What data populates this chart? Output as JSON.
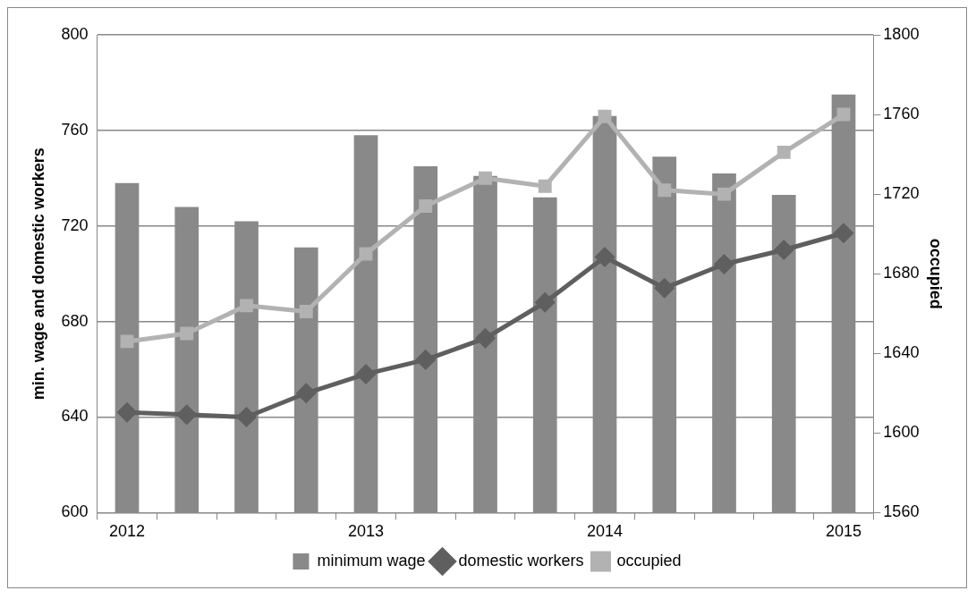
{
  "chart_data": {
    "type": "bar",
    "ylabel": "min. wage and domestic workers",
    "y2label": "occupied",
    "categories": [
      "2012",
      null,
      null,
      null,
      "2013",
      null,
      null,
      null,
      "2014",
      null,
      null,
      null,
      "2015"
    ],
    "series": [
      {
        "name": "minimum wage",
        "color": "#898989",
        "values": [
          738,
          728,
          722,
          711,
          758,
          745,
          741,
          732,
          766,
          749,
          742,
          733,
          775
        ]
      },
      {
        "name": "domestic workers",
        "type": "line",
        "color": "#5f5f5f",
        "marker": "diamond",
        "values": [
          642,
          641,
          640,
          650,
          658,
          664,
          673,
          688,
          707,
          694,
          704,
          710,
          717
        ]
      },
      {
        "name": "occupied",
        "type": "line",
        "axis": "y2",
        "color": "#b2b2b2",
        "marker": "square",
        "values": [
          1646,
          1650,
          1664,
          1661,
          1690,
          1714,
          1728,
          1724,
          1759,
          1722,
          1720,
          1741,
          1760
        ]
      }
    ],
    "ylim": [
      600,
      800
    ],
    "yticks": [
      600,
      640,
      680,
      720,
      760,
      800
    ],
    "y2lim": [
      1560,
      1800
    ],
    "y2ticks": [
      1560,
      1600,
      1640,
      1680,
      1720,
      1760,
      1800
    ],
    "grid": "y",
    "legend": "bottom"
  }
}
